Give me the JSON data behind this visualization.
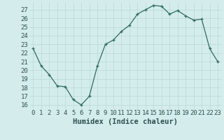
{
  "x": [
    0,
    1,
    2,
    3,
    4,
    5,
    6,
    7,
    8,
    9,
    10,
    11,
    12,
    13,
    14,
    15,
    16,
    17,
    18,
    19,
    20,
    21,
    22,
    23
  ],
  "y": [
    22.5,
    20.5,
    19.5,
    18.2,
    18.1,
    16.6,
    16.0,
    17.0,
    20.5,
    23.0,
    23.5,
    24.5,
    25.2,
    26.5,
    27.0,
    27.5,
    27.4,
    26.5,
    26.9,
    26.3,
    25.8,
    25.9,
    22.5,
    21.0
  ],
  "xlabel": "Humidex (Indice chaleur)",
  "xlim": [
    -0.5,
    23.5
  ],
  "ylim": [
    15.5,
    27.8
  ],
  "yticks": [
    16,
    17,
    18,
    19,
    20,
    21,
    22,
    23,
    24,
    25,
    26,
    27
  ],
  "xticks": [
    0,
    1,
    2,
    3,
    4,
    5,
    6,
    7,
    8,
    9,
    10,
    11,
    12,
    13,
    14,
    15,
    16,
    17,
    18,
    19,
    20,
    21,
    22,
    23
  ],
  "line_color": "#2F6B5E",
  "marker": "+",
  "bg_color": "#D4EDEC",
  "grid_color": "#B8D8D5",
  "text_color": "#2F4F4F",
  "xlabel_fontsize": 7.5,
  "tick_fontsize": 6.5
}
